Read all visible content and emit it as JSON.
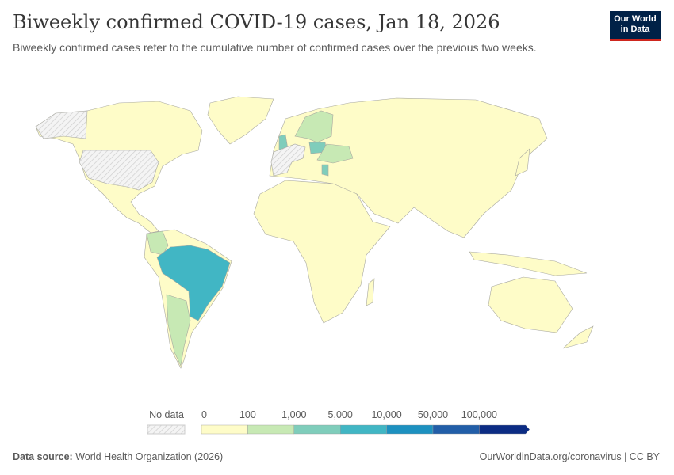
{
  "header": {
    "title": "Biweekly confirmed COVID-19 cases, Jan 18, 2026",
    "subtitle": "Biweekly confirmed cases refer to the cumulative number of confirmed cases over the previous two weeks."
  },
  "logo": {
    "line1": "Our World",
    "line2": "in Data",
    "bg": "#002147",
    "accent": "#ce261e"
  },
  "legend": {
    "no_data_label": "No data",
    "thresholds": [
      "0",
      "100",
      "1,000",
      "5,000",
      "10,000",
      "50,000",
      "100,000"
    ],
    "colors": [
      "#fefcc8",
      "#c7e9b4",
      "#7fcdbb",
      "#41b6c4",
      "#1d91c0",
      "#225ea8",
      "#0c2c84"
    ]
  },
  "highlighted": {
    "Brazil": "5,000–10,000",
    "United Kingdom": "1,000–5,000",
    "Poland": "1,000–5,000",
    "Greece": "1,000–5,000",
    "Colombia": "100–1,000",
    "Argentina": "100–1,000",
    "Scandinavia/Eastern Europe": "100–1,000",
    "United States/France/Spain/Germany/Alaska": "No data"
  },
  "footer": {
    "source_label": "Data source:",
    "source": "World Health Organization (2026)",
    "link": "OurWorldinData.org/coronavirus | CC BY"
  }
}
